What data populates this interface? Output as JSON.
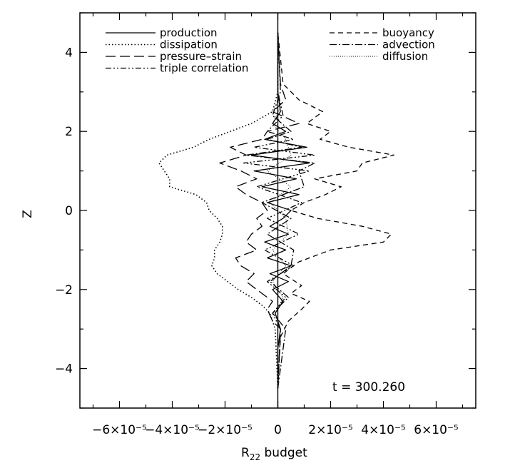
{
  "chart_data": {
    "type": "line",
    "orientation": "vertical-profile",
    "xlabel_main": "R",
    "xlabel_sub": "22",
    "xlabel_rest": " budget",
    "ylabel": "Z",
    "xlim": [
      -7.5e-05,
      7.5e-05
    ],
    "ylim": [
      -5,
      5
    ],
    "x_ticks": [
      {
        "value": -6e-05,
        "label": "−6×10⁻⁵"
      },
      {
        "value": -4e-05,
        "label": "−4×10⁻⁵"
      },
      {
        "value": -2e-05,
        "label": "−2×10⁻⁵"
      },
      {
        "value": 0,
        "label": "0"
      },
      {
        "value": 2e-05,
        "label": "2×10⁻⁵"
      },
      {
        "value": 4e-05,
        "label": "4×10⁻⁵"
      },
      {
        "value": 6e-05,
        "label": "6×10⁻⁵"
      }
    ],
    "y_ticks": [
      {
        "value": -4,
        "label": "−4"
      },
      {
        "value": -2,
        "label": "−2"
      },
      {
        "value": 0,
        "label": "0"
      },
      {
        "value": 2,
        "label": "2"
      },
      {
        "value": 4,
        "label": "4"
      }
    ],
    "annotation": "t = 300.260",
    "grid": false,
    "legend_placement": "top",
    "series": [
      {
        "name": "production",
        "dash": "solid",
        "z": [
          -4.5,
          -3.5,
          -3.0,
          -2.6,
          -2.3,
          -2.0,
          -1.8,
          -1.6,
          -1.4,
          -1.2,
          -1.0,
          -0.8,
          -0.6,
          -0.4,
          -0.2,
          0.0,
          0.2,
          0.4,
          0.6,
          0.8,
          1.0,
          1.2,
          1.4,
          1.6,
          1.8,
          2.0,
          2.2,
          2.5,
          3.0,
          3.5,
          4.5
        ],
        "x": [
          0,
          0.0,
          1e-06,
          -1e-06,
          2e-06,
          -2e-06,
          4e-06,
          -3e-06,
          5e-06,
          -4e-06,
          3e-06,
          -5e-06,
          4e-06,
          -3e-06,
          2e-06,
          5e-06,
          -4e-06,
          8e-06,
          -6e-06,
          7e-06,
          -9e-06,
          1.2e-05,
          -1e-05,
          1.1e-05,
          -5e-06,
          3e-06,
          -2e-06,
          1e-06,
          0.0,
          0,
          0
        ]
      },
      {
        "name": "dissipation",
        "dash": "dotted",
        "z": [
          -4.5,
          -3.0,
          -2.6,
          -2.4,
          -2.2,
          -2.0,
          -1.8,
          -1.6,
          -1.4,
          -1.2,
          -1.0,
          -0.8,
          -0.6,
          -0.4,
          -0.2,
          0.0,
          0.2,
          0.4,
          0.6,
          0.8,
          1.0,
          1.2,
          1.4,
          1.6,
          1.8,
          2.0,
          2.2,
          2.5,
          3.0,
          4.5
        ],
        "x": [
          0,
          -1e-06,
          -3e-06,
          -6e-06,
          -1e-05,
          -1.5e-05,
          -1.9e-05,
          -2.3e-05,
          -2.5e-05,
          -2.4e-05,
          -2.4e-05,
          -2.2e-05,
          -2.1e-05,
          -2.1e-05,
          -2.3e-05,
          -2.6e-05,
          -2.7e-05,
          -3.1e-05,
          -4.1e-05,
          -4.1e-05,
          -4.3e-05,
          -4.5e-05,
          -4.2e-05,
          -3.2e-05,
          -2.6e-05,
          -1.8e-05,
          -1e-05,
          -2e-06,
          0.0,
          0
        ]
      },
      {
        "name": "pressure–strain",
        "dash": "longdash",
        "z": [
          -4.5,
          -3.0,
          -2.8,
          -2.5,
          -2.3,
          -2.0,
          -1.8,
          -1.6,
          -1.4,
          -1.2,
          -1.0,
          -0.8,
          -0.6,
          -0.4,
          -0.2,
          0.0,
          0.2,
          0.4,
          0.6,
          0.8,
          1.0,
          1.2,
          1.4,
          1.6,
          1.8,
          2.0,
          2.2,
          2.5,
          2.8,
          3.2,
          4.5
        ],
        "x": [
          0,
          1e-06,
          -2e-06,
          -4e-06,
          -2e-06,
          -8e-06,
          -1.2e-05,
          -9e-06,
          -1.4e-05,
          -1.6e-05,
          -8e-06,
          -1.2e-05,
          -1e-05,
          -6e-06,
          -8e-06,
          -4e-06,
          -6e-06,
          -1.2e-05,
          -1.6e-05,
          -8e-06,
          -1.4e-05,
          -2.2e-05,
          -1.2e-05,
          -1.8e-05,
          -6e-06,
          -4e-06,
          8e-06,
          -2e-06,
          3e-06,
          1e-06,
          0
        ]
      },
      {
        "name": "triple correlation",
        "dash": "dashdotdot",
        "z": [
          -4.5,
          -3.0,
          -2.6,
          -2.2,
          -1.8,
          -1.4,
          -1.0,
          -0.6,
          -0.2,
          0.2,
          0.6,
          1.0,
          1.2,
          1.4,
          1.6,
          1.8,
          2.0,
          2.4,
          3.0,
          4.5
        ],
        "x": [
          0,
          1e-06,
          -2e-06,
          3e-06,
          -4e-06,
          6e-06,
          -5e-06,
          8e-06,
          -4e-06,
          9e-06,
          -8e-06,
          1.2e-05,
          -1.3e-05,
          1.4e-05,
          -9e-06,
          6e-06,
          -4e-06,
          2e-06,
          0.0,
          0
        ]
      },
      {
        "name": "buoyancy",
        "dash": "dashed",
        "z": [
          -4.5,
          -3.2,
          -2.8,
          -2.5,
          -2.3,
          -2.1,
          -1.9,
          -1.6,
          -1.3,
          -1.0,
          -0.8,
          -0.6,
          -0.4,
          -0.2,
          0.0,
          0.2,
          0.4,
          0.6,
          0.8,
          1.0,
          1.2,
          1.4,
          1.6,
          1.8,
          2.0,
          2.2,
          2.5,
          2.8,
          3.2,
          4.5
        ],
        "x": [
          0,
          1e-06,
          4e-06,
          9e-06,
          1.2e-05,
          5e-06,
          9e-06,
          2e-06,
          8e-06,
          2e-05,
          4e-05,
          4.3e-05,
          3.2e-05,
          1.5e-05,
          5e-06,
          1e-05,
          1.8e-05,
          2.4e-05,
          1.4e-05,
          3e-05,
          3.2e-05,
          4.4e-05,
          2.7e-05,
          1.6e-05,
          2e-05,
          1.1e-05,
          1.7e-05,
          8e-06,
          2e-06,
          0
        ]
      },
      {
        "name": "advection",
        "dash": "dashdot",
        "z": [
          -4.5,
          -3.0,
          -2.6,
          -2.2,
          -1.8,
          -1.4,
          -1.0,
          -0.6,
          -0.2,
          0.2,
          0.6,
          1.0,
          1.2,
          1.4,
          1.6,
          1.8,
          2.0,
          2.4,
          3.0,
          4.5
        ],
        "x": [
          0,
          3e-06,
          -2e-06,
          4e-06,
          -3e-06,
          5e-06,
          6e-06,
          -4e-06,
          5e-06,
          -6e-06,
          1e-05,
          8e-06,
          1.4e-05,
          -1.2e-05,
          9e-06,
          -4e-06,
          5e-06,
          -2e-06,
          1e-06,
          0
        ]
      },
      {
        "name": "diffusion",
        "dash": "finedot",
        "z": [
          -4.5,
          -3.0,
          -2.6,
          -2.2,
          -1.8,
          -1.4,
          -1.0,
          -0.6,
          -0.2,
          0.2,
          0.6,
          1.0,
          1.4,
          1.8,
          2.2,
          2.6,
          3.0,
          4.5
        ],
        "x": [
          0,
          1e-06,
          -1e-06,
          2e-06,
          -2e-06,
          3e-06,
          -2e-06,
          4e-06,
          3e-06,
          -3e-06,
          5e-06,
          -4e-06,
          5e-06,
          3e-06,
          -2e-06,
          1e-06,
          0.0,
          0
        ]
      }
    ]
  }
}
